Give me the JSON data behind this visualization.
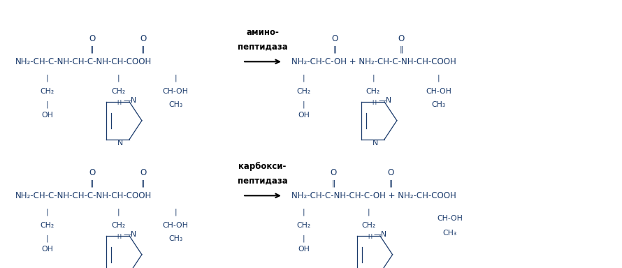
{
  "bg_color": "#ffffff",
  "fig_width": 8.9,
  "fig_height": 3.84,
  "dpi": 100,
  "top_reaction": {
    "enzyme_line1": "амино-",
    "enzyme_line2": "пептидаза"
  },
  "bottom_reaction": {
    "enzyme_line1": "карбокси-",
    "enzyme_line2": "пептидаза"
  },
  "main_color": "#1a3a6b",
  "enzyme_color": "#000000",
  "font_size_main": 8.5,
  "font_size_side": 7.8,
  "font_size_enzyme": 8.5
}
